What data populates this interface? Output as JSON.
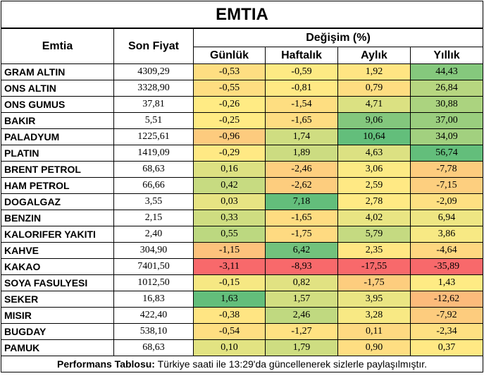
{
  "title": "EMTIA",
  "headers": {
    "commodity": "Emtia",
    "last_price": "Son Fiyat",
    "change": "Değişim (%)",
    "daily": "Günlük",
    "weekly": "Haftalık",
    "monthly": "Aylık",
    "yearly": "Yıllık"
  },
  "rows": [
    {
      "name": "GRAM ALTIN",
      "price": "4309,29",
      "daily": "-0,53",
      "weekly": "-0,59",
      "monthly": "1,92",
      "yearly": "44,43"
    },
    {
      "name": "ONS ALTIN",
      "price": "3328,90",
      "daily": "-0,55",
      "weekly": "-0,81",
      "monthly": "0,79",
      "yearly": "26,84"
    },
    {
      "name": "ONS GUMUS",
      "price": "37,81",
      "daily": "-0,26",
      "weekly": "-1,54",
      "monthly": "4,71",
      "yearly": "30,88"
    },
    {
      "name": "BAKIR",
      "price": "5,51",
      "daily": "-0,25",
      "weekly": "-1,65",
      "monthly": "9,06",
      "yearly": "37,00"
    },
    {
      "name": "PALADYUM",
      "price": "1225,61",
      "daily": "-0,96",
      "weekly": "1,74",
      "monthly": "10,64",
      "yearly": "34,09"
    },
    {
      "name": "PLATIN",
      "price": "1419,09",
      "daily": "-0,29",
      "weekly": "1,89",
      "monthly": "4,63",
      "yearly": "56,74"
    },
    {
      "name": "BRENT PETROL",
      "price": "68,63",
      "daily": "0,16",
      "weekly": "-2,46",
      "monthly": "3,06",
      "yearly": "-7,78"
    },
    {
      "name": "HAM PETROL",
      "price": "66,66",
      "daily": "0,42",
      "weekly": "-2,62",
      "monthly": "2,59",
      "yearly": "-7,15"
    },
    {
      "name": "DOGALGAZ",
      "price": "3,55",
      "daily": "0,03",
      "weekly": "7,18",
      "monthly": "2,78",
      "yearly": "-2,09"
    },
    {
      "name": "BENZIN",
      "price": "2,15",
      "daily": "0,33",
      "weekly": "-1,65",
      "monthly": "4,02",
      "yearly": "6,94"
    },
    {
      "name": "KALORIFER YAKITI",
      "price": "2,40",
      "daily": "0,55",
      "weekly": "-1,75",
      "monthly": "5,79",
      "yearly": "3,86"
    },
    {
      "name": "KAHVE",
      "price": "304,90",
      "daily": "-1,15",
      "weekly": "6,42",
      "monthly": "2,35",
      "yearly": "-4,64"
    },
    {
      "name": "KAKAO",
      "price": "7401,50",
      "daily": "-3,11",
      "weekly": "-8,93",
      "monthly": "-17,55",
      "yearly": "-35,89"
    },
    {
      "name": "SOYA FASULYESI",
      "price": "1012,50",
      "daily": "-0,15",
      "weekly": "0,82",
      "monthly": "-1,75",
      "yearly": "1,43"
    },
    {
      "name": "SEKER",
      "price": "16,83",
      "daily": "1,63",
      "weekly": "1,57",
      "monthly": "3,95",
      "yearly": "-12,62"
    },
    {
      "name": "MISIR",
      "price": "422,40",
      "daily": "-0,38",
      "weekly": "2,46",
      "monthly": "3,28",
      "yearly": "-7,92"
    },
    {
      "name": "BUGDAY",
      "price": "538,10",
      "daily": "-0,54",
      "weekly": "-1,27",
      "monthly": "0,11",
      "yearly": "-2,34"
    },
    {
      "name": "PAMUK",
      "price": "68,63",
      "daily": "0,10",
      "weekly": "1,79",
      "monthly": "0,90",
      "yearly": "0,37"
    }
  ],
  "footer": {
    "label": "Performans Tablosu:",
    "text": " Türkiye saati ile 13:29'da güncellenerek sizlerle paylaşılmıştır."
  }
}
